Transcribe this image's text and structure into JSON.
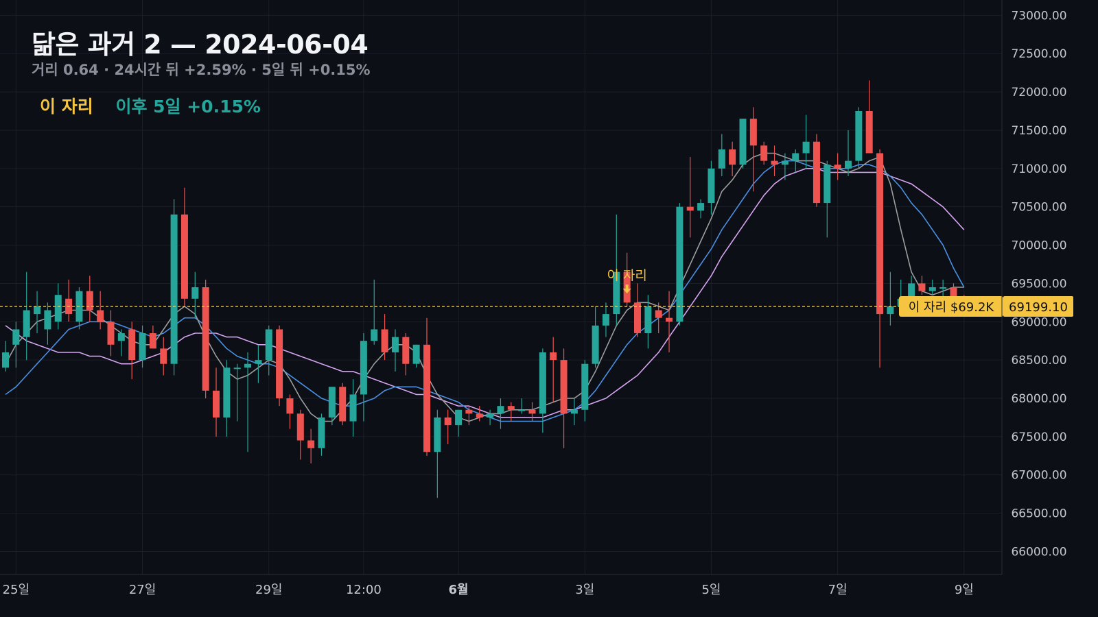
{
  "header": {
    "title": "닮은 과거 2 — 2024-06-04",
    "subtitle": "거리 0.64 · 24시간 뒤 +2.59% · 5일 뒤 +0.15%"
  },
  "legend": {
    "label": "이 자리",
    "performance": "이후 5일 +0.15%"
  },
  "colors": {
    "background": "#0c0f16",
    "up": "#26a69a",
    "down": "#ef5350",
    "ma_fast": "#9e9e9e",
    "ma_mid": "#4a90e2",
    "ma_slow": "#d6a4f0",
    "marker": "#f5c542"
  },
  "chart_data": {
    "type": "candlestick",
    "y_axis": {
      "min": 65700,
      "max": 73200,
      "ticks": [
        "73000.00",
        "72500.00",
        "72000.00",
        "71500.00",
        "71000.00",
        "70500.00",
        "70000.00",
        "69500.00",
        "69000.00",
        "68500.00",
        "68000.00",
        "67500.00",
        "67000.00",
        "66500.00",
        "66000.00"
      ]
    },
    "x_axis": {
      "ticks": [
        {
          "index": 1,
          "label": "25일",
          "bold": false
        },
        {
          "index": 13,
          "label": "27일",
          "bold": false
        },
        {
          "index": 25,
          "label": "29일",
          "bold": false
        },
        {
          "index": 34,
          "label": "12:00",
          "bold": false
        },
        {
          "index": 43,
          "label": "6월",
          "bold": true
        },
        {
          "index": 55,
          "label": "3일",
          "bold": false
        },
        {
          "index": 67,
          "label": "5일",
          "bold": false
        },
        {
          "index": 79,
          "label": "7일",
          "bold": false
        },
        {
          "index": 91,
          "label": "9일",
          "bold": false
        }
      ]
    },
    "candles": [
      [
        68400,
        68750,
        68350,
        68600
      ],
      [
        68700,
        69000,
        68400,
        68900
      ],
      [
        68800,
        69650,
        68500,
        69150
      ],
      [
        69100,
        69400,
        68850,
        69200
      ],
      [
        68900,
        69250,
        68700,
        69150
      ],
      [
        69000,
        69500,
        68900,
        69350
      ],
      [
        69300,
        69550,
        69000,
        69100
      ],
      [
        69000,
        69450,
        68900,
        69400
      ],
      [
        69400,
        69600,
        69000,
        69150
      ],
      [
        69150,
        69400,
        68900,
        69000
      ],
      [
        69000,
        69150,
        68550,
        68700
      ],
      [
        68750,
        68900,
        68550,
        68850
      ],
      [
        68900,
        69000,
        68250,
        68500
      ],
      [
        68500,
        68950,
        68400,
        68850
      ],
      [
        68850,
        68950,
        68650,
        68650
      ],
      [
        68650,
        68800,
        68300,
        68450
      ],
      [
        68450,
        70600,
        68300,
        70400
      ],
      [
        70400,
        70750,
        69200,
        69300
      ],
      [
        69300,
        69650,
        69050,
        69450
      ],
      [
        69450,
        69550,
        68000,
        68100
      ],
      [
        68100,
        68400,
        67500,
        67750
      ],
      [
        67750,
        68500,
        67500,
        68400
      ],
      [
        68400,
        68450,
        67700,
        68400
      ],
      [
        68400,
        68600,
        67300,
        68450
      ],
      [
        68450,
        68700,
        68200,
        68500
      ],
      [
        68500,
        68950,
        68300,
        68900
      ],
      [
        68900,
        68950,
        67900,
        68000
      ],
      [
        68000,
        68050,
        67600,
        67800
      ],
      [
        67800,
        67850,
        67200,
        67450
      ],
      [
        67450,
        67600,
        67150,
        67350
      ],
      [
        67350,
        67800,
        67250,
        67750
      ],
      [
        67750,
        68150,
        67650,
        68150
      ],
      [
        68150,
        68200,
        67650,
        67700
      ],
      [
        67700,
        68250,
        67500,
        68050
      ],
      [
        68050,
        68850,
        67700,
        68750
      ],
      [
        68750,
        69550,
        68700,
        68900
      ],
      [
        68900,
        69100,
        68500,
        68600
      ],
      [
        68600,
        68900,
        68350,
        68800
      ],
      [
        68800,
        68850,
        68300,
        68450
      ],
      [
        68450,
        68700,
        68400,
        68700
      ],
      [
        68700,
        69050,
        67250,
        67300
      ],
      [
        67300,
        67850,
        66700,
        67750
      ],
      [
        67750,
        67850,
        67400,
        67650
      ],
      [
        67650,
        67850,
        67500,
        67850
      ],
      [
        67850,
        67900,
        67650,
        67800
      ],
      [
        67800,
        67900,
        67700,
        67750
      ],
      [
        67750,
        67850,
        67650,
        67800
      ],
      [
        67800,
        68000,
        67600,
        67900
      ],
      [
        67900,
        67950,
        67700,
        67850
      ],
      [
        67850,
        68000,
        67800,
        67850
      ],
      [
        67850,
        67950,
        67700,
        67800
      ],
      [
        67800,
        68650,
        67550,
        68600
      ],
      [
        68600,
        68800,
        67950,
        68500
      ],
      [
        68500,
        68650,
        67350,
        67800
      ],
      [
        67800,
        68000,
        67650,
        67850
      ],
      [
        67850,
        68500,
        67700,
        68450
      ],
      [
        68450,
        69200,
        68400,
        68950
      ],
      [
        68950,
        69250,
        68800,
        69100
      ],
      [
        69100,
        70400,
        68950,
        69650
      ],
      [
        69650,
        69900,
        69200,
        69250
      ],
      [
        69250,
        69500,
        68800,
        68850
      ],
      [
        68850,
        69350,
        68650,
        69200
      ],
      [
        69150,
        69250,
        68850,
        69050
      ],
      [
        69050,
        69400,
        68600,
        69000
      ],
      [
        69000,
        70550,
        68950,
        70500
      ],
      [
        70500,
        71150,
        70100,
        70450
      ],
      [
        70450,
        70600,
        70350,
        70550
      ],
      [
        70550,
        71100,
        70400,
        71000
      ],
      [
        71000,
        71450,
        70900,
        71250
      ],
      [
        71250,
        71350,
        70900,
        71050
      ],
      [
        71050,
        71600,
        71000,
        71650
      ],
      [
        71650,
        71800,
        70700,
        71300
      ],
      [
        71300,
        71350,
        71050,
        71100
      ],
      [
        71100,
        71300,
        70900,
        71050
      ],
      [
        71050,
        71200,
        70850,
        71100
      ],
      [
        71100,
        71250,
        70950,
        71200
      ],
      [
        71200,
        71700,
        71000,
        71350
      ],
      [
        71350,
        71450,
        70500,
        70550
      ],
      [
        70550,
        71100,
        70100,
        71050
      ],
      [
        71050,
        71200,
        70850,
        71000
      ],
      [
        71000,
        71500,
        70900,
        71100
      ],
      [
        71100,
        71800,
        71000,
        71750
      ],
      [
        71750,
        72150,
        71200,
        71200
      ],
      [
        71200,
        71250,
        68400,
        69100
      ],
      [
        69100,
        69650,
        68950,
        69200
      ],
      [
        69200,
        69550,
        69150,
        69300
      ],
      [
        69300,
        69600,
        69200,
        69500
      ],
      [
        69500,
        69600,
        69350,
        69400
      ],
      [
        69400,
        69550,
        69350,
        69450
      ],
      [
        69450,
        69550,
        69250,
        69450
      ],
      [
        69450,
        69500,
        69300,
        69300
      ],
      [
        69300,
        69350,
        69200,
        69200
      ]
    ],
    "ma_fast": [
      68450,
      68700,
      68850,
      69000,
      69050,
      69100,
      69150,
      69150,
      69150,
      69050,
      68950,
      68850,
      68750,
      68700,
      68700,
      68900,
      69100,
      69200,
      69100,
      68800,
      68550,
      68350,
      68250,
      68300,
      68400,
      68500,
      68450,
      68250,
      68000,
      67800,
      67700,
      67700,
      67850,
      68000,
      68250,
      68450,
      68600,
      68700,
      68700,
      68600,
      68300,
      68050,
      67900,
      67750,
      67700,
      67750,
      67800,
      67800,
      67850,
      67850,
      67850,
      67900,
      67950,
      68000,
      68000,
      68100,
      68350,
      68650,
      68950,
      69150,
      69250,
      69250,
      69200,
      69150,
      69450,
      69750,
      70050,
      70350,
      70700,
      70850,
      71050,
      71150,
      71200,
      71200,
      71150,
      71100,
      71100,
      71100,
      71050,
      71000,
      70950,
      71000,
      71100,
      71150,
      70800,
      70200,
      69650,
      69400,
      69350,
      69400,
      69450,
      69450
    ],
    "ma_mid": [
      68050,
      68150,
      68300,
      68450,
      68600,
      68750,
      68900,
      68950,
      69000,
      69000,
      69000,
      68950,
      68900,
      68850,
      68800,
      68850,
      68950,
      69050,
      69050,
      68950,
      68800,
      68650,
      68550,
      68500,
      68450,
      68450,
      68400,
      68300,
      68200,
      68100,
      68000,
      67950,
      67900,
      67900,
      67950,
      68000,
      68100,
      68150,
      68150,
      68150,
      68100,
      68050,
      68000,
      67950,
      67850,
      67800,
      67750,
      67700,
      67700,
      67700,
      67700,
      67700,
      67750,
      67800,
      67850,
      67950,
      68100,
      68300,
      68500,
      68700,
      68850,
      68950,
      69050,
      69150,
      69350,
      69550,
      69750,
      69950,
      70200,
      70400,
      70600,
      70800,
      70950,
      71050,
      71100,
      71100,
      71050,
      71000,
      71000,
      71000,
      71000,
      71050,
      71050,
      71000,
      70900,
      70750,
      70550,
      70400,
      70200,
      70000,
      69700,
      69450
    ],
    "ma_slow": [
      68950,
      68850,
      68750,
      68700,
      68650,
      68600,
      68600,
      68600,
      68550,
      68550,
      68500,
      68450,
      68450,
      68500,
      68550,
      68600,
      68700,
      68800,
      68850,
      68850,
      68850,
      68800,
      68800,
      68750,
      68700,
      68700,
      68650,
      68600,
      68550,
      68500,
      68450,
      68400,
      68350,
      68350,
      68300,
      68250,
      68200,
      68150,
      68100,
      68050,
      68050,
      68000,
      67950,
      67900,
      67900,
      67850,
      67800,
      67750,
      67750,
      67750,
      67750,
      67750,
      67800,
      67850,
      67850,
      67900,
      67950,
      68000,
      68100,
      68200,
      68300,
      68450,
      68600,
      68800,
      69000,
      69200,
      69400,
      69600,
      69850,
      70050,
      70250,
      70450,
      70650,
      70800,
      70900,
      70950,
      71000,
      71000,
      70950,
      70950,
      70950,
      70950,
      70950,
      70950,
      70900,
      70850,
      70800,
      70700,
      70600,
      70500,
      70350,
      70200
    ],
    "current_price": 69199.1,
    "current_price_label": "69199.10",
    "price_tag": "이 자리 $69.2K",
    "marker": {
      "index": 59,
      "label": "이 자리"
    }
  }
}
